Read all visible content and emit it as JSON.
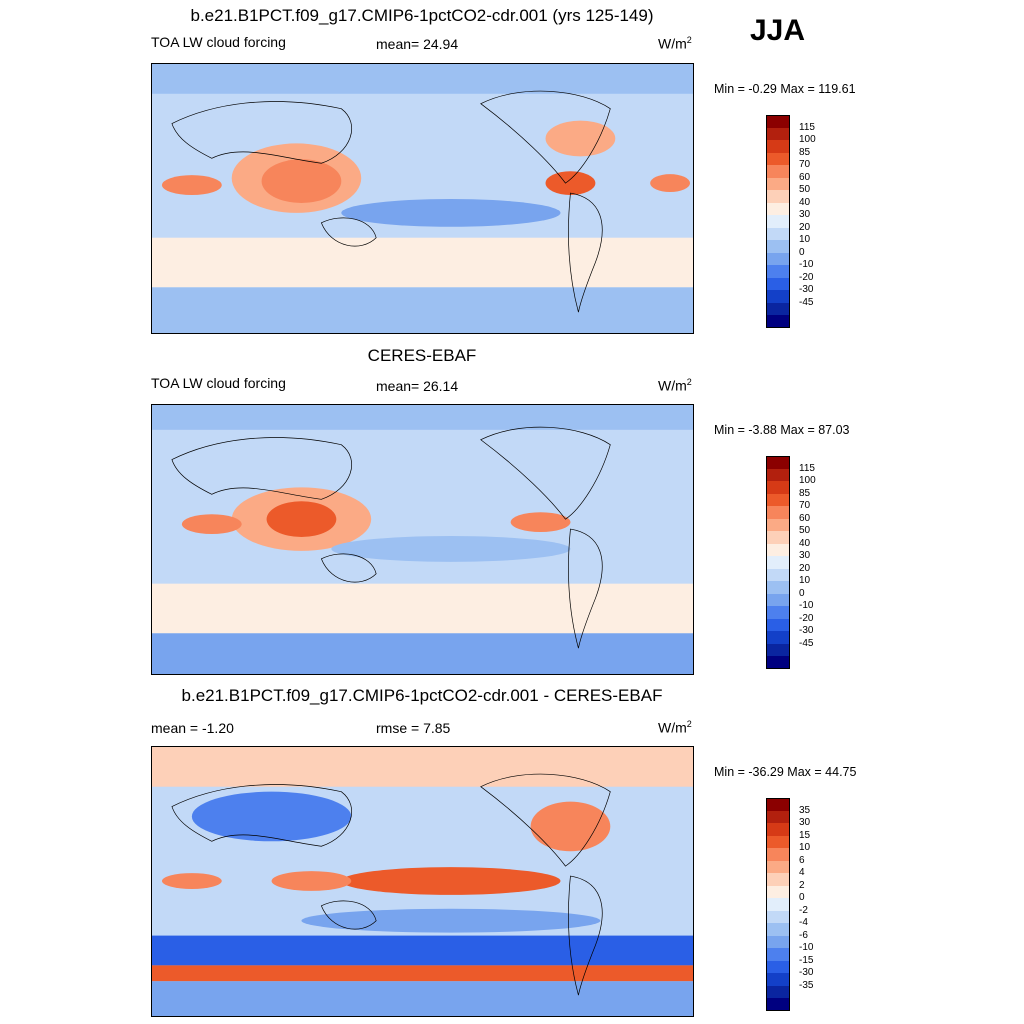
{
  "season": "JJA",
  "panels": [
    {
      "title": "b.e21.B1PCT.f09_g17.CMIP6-1pctCO2-cdr.001 (yrs 125-149)",
      "left_label": "TOA LW cloud forcing",
      "center_label": "mean=  24.94",
      "units": "W/m",
      "units_sup": "2",
      "minmax": "Min =  -0.29 Max = 119.61",
      "colorbar": {
        "colors": [
          "#8b0000",
          "#b2200e",
          "#d63a16",
          "#ec5a2a",
          "#f7855b",
          "#fbaa85",
          "#fdd0b8",
          "#fdeee2",
          "#e2eefb",
          "#c2d9f7",
          "#9cc0f2",
          "#78a4ee",
          "#4d80ee",
          "#2a5fe6",
          "#1340c8",
          "#0a25a0",
          "#000080"
        ],
        "labels": [
          "115",
          "100",
          "85",
          "70",
          "60",
          "50",
          "40",
          "30",
          "20",
          "10",
          "0",
          "-10",
          "-20",
          "-30",
          "-45"
        ]
      }
    },
    {
      "title": "CERES-EBAF",
      "left_label": "TOA LW cloud forcing",
      "center_label": "mean=  26.14",
      "units": "W/m",
      "units_sup": "2",
      "minmax": "Min =  -3.88 Max =  87.03",
      "colorbar": {
        "colors": [
          "#8b0000",
          "#b2200e",
          "#d63a16",
          "#ec5a2a",
          "#f7855b",
          "#fbaa85",
          "#fdd0b8",
          "#fdeee2",
          "#e2eefb",
          "#c2d9f7",
          "#9cc0f2",
          "#78a4ee",
          "#4d80ee",
          "#2a5fe6",
          "#1340c8",
          "#0a25a0",
          "#000080"
        ],
        "labels": [
          "115",
          "100",
          "85",
          "70",
          "60",
          "50",
          "40",
          "30",
          "20",
          "10",
          "0",
          "-10",
          "-20",
          "-30",
          "-45"
        ]
      }
    },
    {
      "title": "b.e21.B1PCT.f09_g17.CMIP6-1pctCO2-cdr.001 - CERES-EBAF",
      "left_label": "mean =  -1.20",
      "center_label": "rmse =   7.85",
      "units": "W/m",
      "units_sup": "2",
      "minmax": "Min = -36.29 Max =  44.75",
      "colorbar": {
        "colors": [
          "#8b0000",
          "#b2200e",
          "#d63a16",
          "#ec5a2a",
          "#f7855b",
          "#fbaa85",
          "#fdd0b8",
          "#fdeee2",
          "#e2eefb",
          "#c2d9f7",
          "#9cc0f2",
          "#78a4ee",
          "#4d80ee",
          "#2a5fe6",
          "#1340c8",
          "#0a25a0",
          "#000080"
        ],
        "labels": [
          "35",
          "30",
          "15",
          "10",
          "6",
          "4",
          "2",
          "0",
          "-2",
          "-4",
          "-6",
          "-10",
          "-15",
          "-30",
          "-35"
        ]
      }
    }
  ]
}
